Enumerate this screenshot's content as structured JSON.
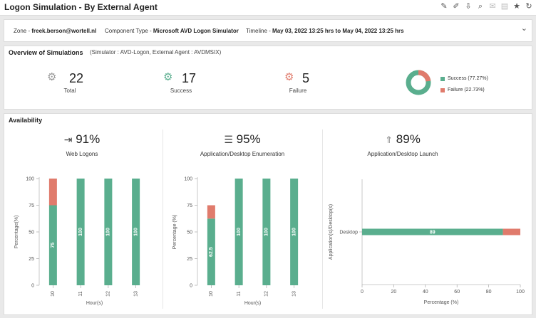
{
  "header": {
    "title": "Logon Simulation - By External Agent"
  },
  "filter": {
    "zone_label": "Zone - ",
    "zone_value": "freek.berson@wortell.nl",
    "component_label": "Component Type - ",
    "component_value": "Microsoft AVD Logon Simulator",
    "timeline_label": "Timeline - ",
    "timeline_value": "May 03, 2022 13:25 hrs to May 04, 2022 13:25 hrs"
  },
  "overview": {
    "title": "Overview of Simulations",
    "subtitle": "(Simulator : AVD-Logon, External Agent : AVDMSIX)",
    "total": {
      "value": "22",
      "label": "Total"
    },
    "success": {
      "value": "17",
      "label": "Success"
    },
    "failure": {
      "value": "5",
      "label": "Failure"
    },
    "legend": [
      {
        "label": "Success (77.27%)",
        "color": "#5aae8e"
      },
      {
        "label": "Failure (22.73%)",
        "color": "#e07b6c"
      }
    ]
  },
  "availability": {
    "title": "Availability",
    "web": {
      "pct": "91%",
      "label": "Web Logons"
    },
    "enum": {
      "pct": "95%",
      "label": "Application/Desktop Enumeration"
    },
    "launch": {
      "pct": "89%",
      "label": "Application/Desktop Launch"
    }
  },
  "colors": {
    "success": "#5aae8e",
    "failure": "#e07b6c"
  },
  "chart_data": [
    {
      "type": "bar",
      "stacked": true,
      "categories": [
        "10",
        "11",
        "12",
        "13"
      ],
      "series": [
        {
          "values": [
            75,
            100,
            100,
            100
          ],
          "labels": [
            "75",
            "100",
            "100",
            "100"
          ]
        },
        {
          "values": [
            25,
            0,
            0,
            0
          ]
        }
      ],
      "xlabel": "Hour(s)",
      "ylabel": "Percentage(%)",
      "ylim": [
        0,
        100
      ],
      "yticks": [
        "0",
        "25",
        "50",
        "75",
        "100"
      ]
    },
    {
      "type": "bar",
      "stacked": true,
      "categories": [
        "10",
        "11",
        "12",
        "13"
      ],
      "series": [
        {
          "values": [
            62.5,
            100,
            100,
            100
          ],
          "labels": [
            "62.5",
            "100",
            "100",
            "100"
          ]
        },
        {
          "values": [
            12.5,
            0,
            0,
            0
          ]
        }
      ],
      "xlabel": "Hour(s)",
      "ylabel": "Percentage (%)",
      "ylim": [
        0,
        100
      ],
      "yticks": [
        "0",
        "25",
        "50",
        "75",
        "100"
      ]
    },
    {
      "type": "bar",
      "orientation": "horizontal",
      "stacked": true,
      "categories": [
        "Desktop"
      ],
      "series": [
        {
          "values": [
            89
          ],
          "labels": [
            "89"
          ]
        },
        {
          "values": [
            11
          ]
        }
      ],
      "xlabel": "Percentage (%)",
      "ylabel": "Application(s)/Desktop(s)",
      "xlim": [
        0,
        100
      ],
      "xticks": [
        "0",
        "20",
        "40",
        "60",
        "80",
        "100"
      ]
    }
  ]
}
